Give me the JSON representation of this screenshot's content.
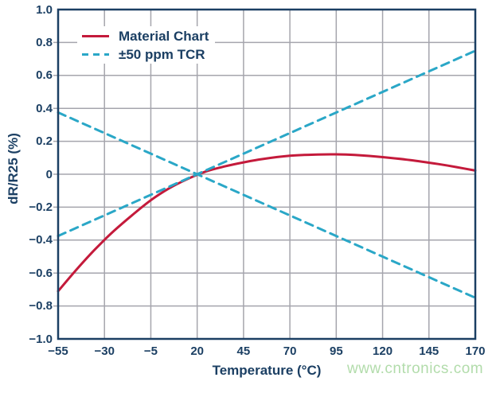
{
  "page": {
    "background": "#ffffff",
    "watermark": {
      "text": "www.cntronics.com",
      "color": "#b2dcab"
    }
  },
  "chart_data": {
    "type": "line",
    "title": "",
    "xlabel": "Temperature (°C)",
    "ylabel": "dR/R25 (%)",
    "xlim": [
      -55,
      170
    ],
    "ylim": [
      -1.0,
      1.0
    ],
    "grid": true,
    "legend_position": "top-left",
    "x_ticks": [
      -55,
      -30,
      -5,
      20,
      45,
      70,
      95,
      120,
      145,
      170
    ],
    "x_tick_labels": [
      "−55",
      "−30",
      "−5",
      "20",
      "45",
      "70",
      "95",
      "120",
      "145",
      "170"
    ],
    "y_ticks": [
      1.0,
      0.8,
      0.6,
      0.4,
      0.2,
      0,
      -0.2,
      -0.4,
      -0.6,
      -0.8,
      -1.0
    ],
    "y_tick_labels": [
      "1.0",
      "0.8",
      "0.6",
      "0.4",
      "0.2",
      "0",
      "−0.2",
      "−0.4",
      "−0.6",
      "−0.8",
      "−1.0"
    ],
    "colors": {
      "frame": "#1b3f63",
      "text": "#1b3f63",
      "grid": "#a5a5ad",
      "material": "#c41a3b",
      "tcr": "#2aa7c7"
    },
    "legend": [
      {
        "label": "Material Chart",
        "style": "solid",
        "color": "#c41a3b"
      },
      {
        "label": "±50 ppm TCR",
        "style": "dashed",
        "color": "#2aa7c7"
      }
    ],
    "series": [
      {
        "name": "Material Chart",
        "style": "solid",
        "color": "#c41a3b",
        "points": [
          [
            -55,
            -0.71
          ],
          [
            -45,
            -0.578
          ],
          [
            -35,
            -0.455
          ],
          [
            -25,
            -0.345
          ],
          [
            -15,
            -0.248
          ],
          [
            -5,
            -0.158
          ],
          [
            5,
            -0.085
          ],
          [
            15,
            -0.028
          ],
          [
            25,
            0.018
          ],
          [
            35,
            0.048
          ],
          [
            45,
            0.072
          ],
          [
            55,
            0.092
          ],
          [
            70,
            0.112
          ],
          [
            85,
            0.12
          ],
          [
            95,
            0.121
          ],
          [
            105,
            0.117
          ],
          [
            120,
            0.104
          ],
          [
            135,
            0.086
          ],
          [
            150,
            0.062
          ],
          [
            160,
            0.043
          ],
          [
            170,
            0.022
          ]
        ]
      },
      {
        "name": "+50 ppm TCR",
        "style": "dashed",
        "color": "#2aa7c7",
        "points": [
          [
            -55,
            -0.375
          ],
          [
            170,
            0.75
          ]
        ]
      },
      {
        "name": "−50 ppm TCR",
        "style": "dashed",
        "color": "#2aa7c7",
        "points": [
          [
            -55,
            0.375
          ],
          [
            170,
            -0.75
          ]
        ]
      }
    ]
  }
}
